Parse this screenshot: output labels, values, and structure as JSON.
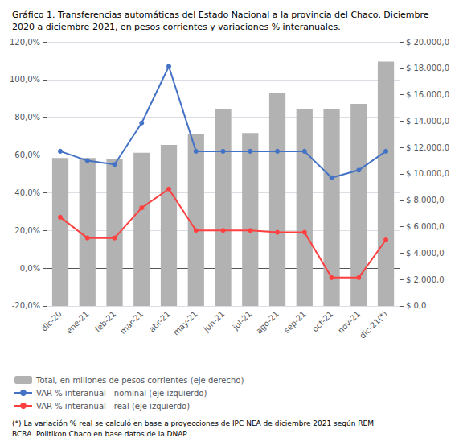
{
  "chart_data": {
    "type": "bar",
    "title": "Gráfico 1. Transferencias automáticas del Estado Nacional a la provincia del Chaco. Diciembre 2020 a diciembre 2021, en pesos corrientes y variaciones % interanuales.",
    "annotations": [
      "(*) La variación % real se calculó en base a proyecciones de IPC NEA de diciembre 2021 según REM BCRA. Politikon Chaco en base datos de la DNAP"
    ],
    "categories": [
      "dic-20",
      "ene-21",
      "feb-21",
      "mar-21",
      "abr-21",
      "may-21",
      "jun-21",
      "jul-21",
      "ago-21",
      "sep-21",
      "oct-21",
      "nov-21",
      "dic-21(*)"
    ],
    "series": [
      {
        "name": "Total, en millones de pesos corrientes (eje derecho)",
        "type": "bar",
        "axis": "y2",
        "color": "#b2b2b2",
        "values": [
          11200,
          11200,
          11100,
          11600,
          12200,
          13000,
          14900,
          13100,
          16100,
          14900,
          14900,
          15300,
          18500
        ]
      },
      {
        "name": "VAR % interanual - nominal (eje izquierdo)",
        "type": "line",
        "marker": "circle",
        "color": "#4472C4",
        "values": [
          62,
          57,
          55,
          77,
          107,
          62,
          62,
          62,
          62,
          62,
          48,
          52,
          62
        ]
      },
      {
        "name": "VAR % interanual - real (eje izquierdo)",
        "type": "line",
        "marker": "circle",
        "color": "#FF4040",
        "values": [
          27,
          16,
          16,
          32,
          42,
          20,
          20,
          20,
          19,
          19,
          -5,
          -5,
          15
        ]
      }
    ],
    "ylim": [
      -20,
      120
    ],
    "yticks": [
      {
        "value": -20,
        "label": "-20,0%"
      },
      {
        "value": 0,
        "label": "0,0%"
      },
      {
        "value": 20,
        "label": "20,0%"
      },
      {
        "value": 40,
        "label": "40,0%"
      },
      {
        "value": 60,
        "label": "60,0%"
      },
      {
        "value": 80,
        "label": "80,0%"
      },
      {
        "value": 100,
        "label": "100,0%"
      },
      {
        "value": 120,
        "label": "120,0%"
      }
    ],
    "y2lim": [
      0,
      20000
    ],
    "y2ticks": [
      {
        "value": 0,
        "label": "$ 0,0"
      },
      {
        "value": 2000,
        "label": "$ 2.000,0"
      },
      {
        "value": 4000,
        "label": "$ 4.000,0"
      },
      {
        "value": 6000,
        "label": "$ 6.000,0"
      },
      {
        "value": 8000,
        "label": "$ 8.000,0"
      },
      {
        "value": 10000,
        "label": "$ 10.000,0"
      },
      {
        "value": 12000,
        "label": "$ 12.000,0"
      },
      {
        "value": 14000,
        "label": "$ 14.000,0"
      },
      {
        "value": 16000,
        "label": "$ 16.000,0"
      },
      {
        "value": 18000,
        "label": "$ 18.000,0"
      },
      {
        "value": 20000,
        "label": "$ 20.000,0"
      }
    ],
    "grid": true,
    "legend": "bottom"
  }
}
